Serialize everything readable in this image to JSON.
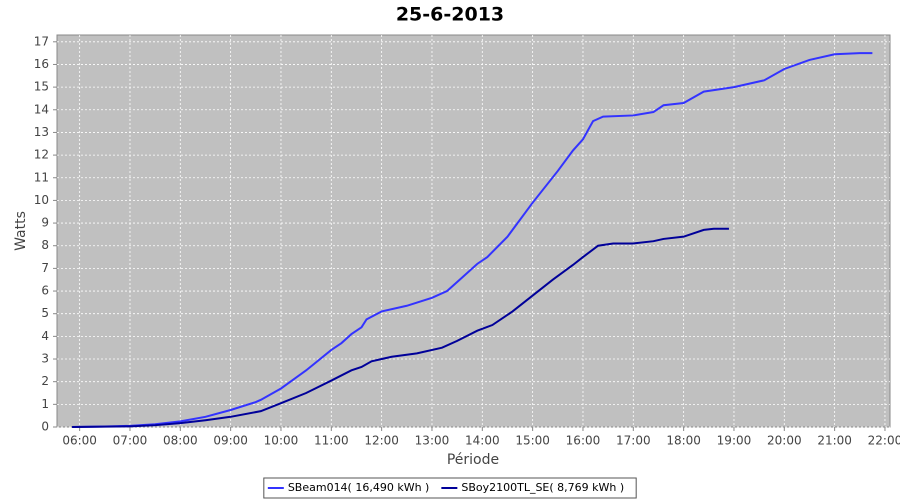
{
  "chart_data": {
    "type": "line",
    "title": "25-6-2013",
    "x_label": "Période",
    "y_label": "Watts",
    "xlim": [
      5.55,
      22.1
    ],
    "ylim": [
      0,
      17.3
    ],
    "xticks": [
      {
        "value": 6,
        "label": "06:00"
      },
      {
        "value": 7,
        "label": "07:00"
      },
      {
        "value": 8,
        "label": "08:00"
      },
      {
        "value": 9,
        "label": "09:00"
      },
      {
        "value": 10,
        "label": "10:00"
      },
      {
        "value": 11,
        "label": "11:00"
      },
      {
        "value": 12,
        "label": "12:00"
      },
      {
        "value": 13,
        "label": "13:00"
      },
      {
        "value": 14,
        "label": "14:00"
      },
      {
        "value": 15,
        "label": "15:00"
      },
      {
        "value": 16,
        "label": "16:00"
      },
      {
        "value": 17,
        "label": "17:00"
      },
      {
        "value": 18,
        "label": "18:00"
      },
      {
        "value": 19,
        "label": "19:00"
      },
      {
        "value": 20,
        "label": "20:00"
      },
      {
        "value": 21,
        "label": "21:00"
      },
      {
        "value": 22,
        "label": "22:00"
      }
    ],
    "yticks": [
      0,
      1,
      2,
      3,
      4,
      5,
      6,
      7,
      8,
      9,
      10,
      11,
      12,
      13,
      14,
      15,
      16,
      17
    ],
    "grid": true,
    "legend": "bottom",
    "series": [
      {
        "name": "SBeam014( 16,490 kWh )",
        "color": "#3333ff",
        "x": [
          5.85,
          6.5,
          7,
          7.5,
          8,
          8.5,
          9,
          9.5,
          9.6,
          10,
          10.5,
          11,
          11.2,
          11.4,
          11.6,
          11.7,
          12,
          12.5,
          13,
          13.3,
          13.6,
          13.9,
          14.1,
          14.5,
          15,
          15.5,
          15.8,
          16,
          16.2,
          16.4,
          17,
          17.4,
          17.6,
          18,
          18.4,
          19,
          19.6,
          20,
          20.5,
          21,
          21.5,
          21.75
        ],
        "values": [
          0,
          0.02,
          0.05,
          0.12,
          0.25,
          0.45,
          0.75,
          1.1,
          1.2,
          1.7,
          2.5,
          3.4,
          3.7,
          4.1,
          4.4,
          4.75,
          5.1,
          5.35,
          5.7,
          6.0,
          6.6,
          7.2,
          7.5,
          8.4,
          9.9,
          11.3,
          12.2,
          12.7,
          13.5,
          13.7,
          13.75,
          13.9,
          14.2,
          14.3,
          14.8,
          15.0,
          15.3,
          15.8,
          16.2,
          16.45,
          16.5,
          16.5
        ]
      },
      {
        "name": "SBoy2100TL_SE( 8,769 kWh )",
        "color": "#000099",
        "x": [
          5.85,
          7,
          7.5,
          8,
          8.5,
          9,
          9.6,
          10,
          10.5,
          11,
          11.4,
          11.6,
          11.8,
          12.2,
          12.7,
          13.2,
          13.5,
          13.9,
          14.2,
          14.6,
          15,
          15.4,
          15.8,
          16,
          16.3,
          16.6,
          17,
          17.4,
          17.6,
          18,
          18.4,
          18.6,
          18.9
        ],
        "values": [
          0,
          0.03,
          0.08,
          0.17,
          0.3,
          0.45,
          0.7,
          1.05,
          1.5,
          2.05,
          2.5,
          2.65,
          2.9,
          3.1,
          3.25,
          3.5,
          3.8,
          4.25,
          4.5,
          5.1,
          5.8,
          6.5,
          7.15,
          7.5,
          8.0,
          8.1,
          8.1,
          8.2,
          8.3,
          8.4,
          8.7,
          8.75,
          8.75
        ]
      }
    ]
  }
}
